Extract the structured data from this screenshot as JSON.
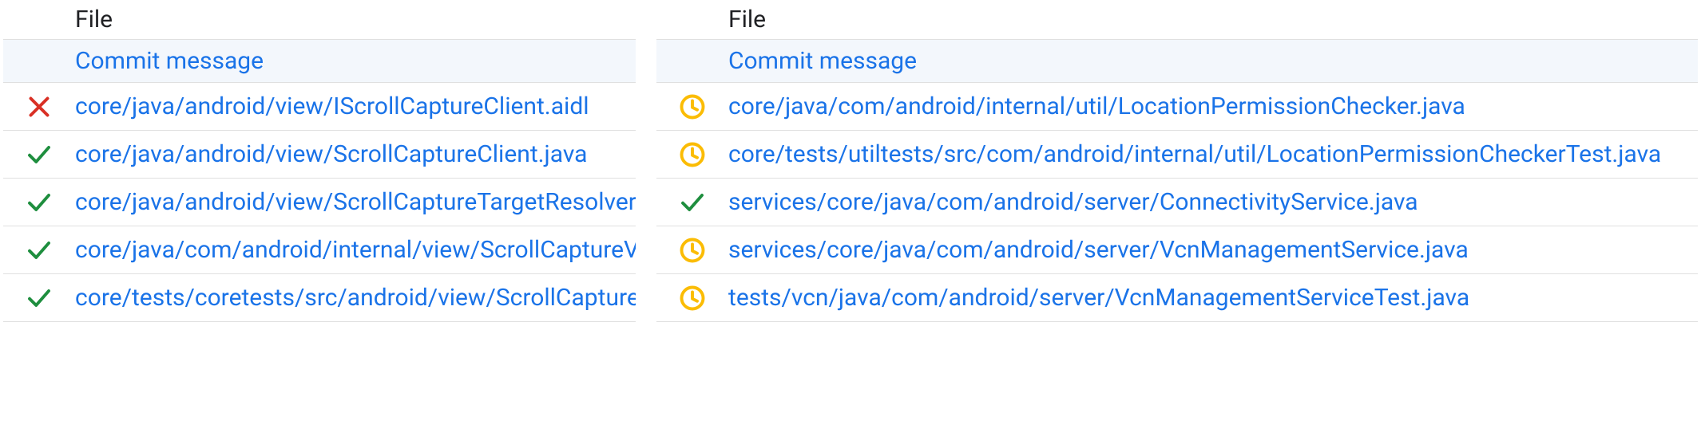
{
  "colors": {
    "link": "#1a73e8",
    "header_text": "#202124",
    "border": "#e0e0e0",
    "commit_row_bg": "#f3f7fc",
    "green": "#1e8e3e",
    "red": "#d93025",
    "orange": "#fbbc04"
  },
  "headers": {
    "file": "File",
    "commit": "Commit message"
  },
  "panels": {
    "left": {
      "files": [
        {
          "status": "fail",
          "path": "core/java/android/view/IScrollCaptureClient.aidl"
        },
        {
          "status": "pass",
          "path": "core/java/android/view/ScrollCaptureClient.java"
        },
        {
          "status": "pass",
          "path": "core/java/android/view/ScrollCaptureTargetResolver.java"
        },
        {
          "status": "pass",
          "path": "core/java/com/android/internal/view/ScrollCaptureViewSupport.java"
        },
        {
          "status": "pass",
          "path": "core/tests/coretests/src/android/view/ScrollCaptureClientTest.java"
        }
      ]
    },
    "right": {
      "files": [
        {
          "status": "pending",
          "path": "core/java/com/android/internal/util/LocationPermissionChecker.java"
        },
        {
          "status": "pending",
          "path": "core/tests/utiltests/src/com/android/internal/util/LocationPermissionCheckerTest.java"
        },
        {
          "status": "pass",
          "path": "services/core/java/com/android/server/ConnectivityService.java"
        },
        {
          "status": "pending",
          "path": "services/core/java/com/android/server/VcnManagementService.java"
        },
        {
          "status": "pending",
          "path": "tests/vcn/java/com/android/server/VcnManagementServiceTest.java"
        }
      ]
    }
  }
}
